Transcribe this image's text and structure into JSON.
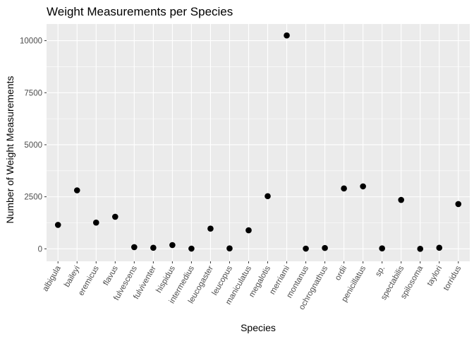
{
  "chart_data": {
    "type": "scatter",
    "title": "Weight Measurements per Species",
    "xlabel": "Species",
    "ylabel": "Number of Weight Measurements",
    "categories": [
      "albigula",
      "baileyi",
      "eremicus",
      "flavus",
      "fulvescens",
      "fulviventer",
      "hispidus",
      "intermedius",
      "leucogaster",
      "leucopus",
      "maniculatus",
      "megalotis",
      "merriami",
      "montanus",
      "ochrognathus",
      "ordii",
      "penicillatus",
      "sp.",
      "spectabilis",
      "spilosoma",
      "taylori",
      "torridus"
    ],
    "series": [
      {
        "values": [
          1150,
          2810,
          1260,
          1540,
          80,
          50,
          180,
          10,
          970,
          20,
          890,
          2530,
          10250,
          10,
          40,
          2900,
          3000,
          20,
          2350,
          0,
          50,
          2150
        ]
      }
    ],
    "yticks": [
      0,
      2500,
      5000,
      7500,
      10000
    ],
    "yticklabels": [
      "0",
      "2500",
      "5000",
      "7500",
      "10000"
    ],
    "ylim": [
      -600,
      10800
    ],
    "grid": true,
    "legend": "none",
    "colors": {
      "panel": "#ebebeb",
      "grid": "#ffffff",
      "point": "#000000",
      "tick_text": "#4d4d4d"
    }
  }
}
